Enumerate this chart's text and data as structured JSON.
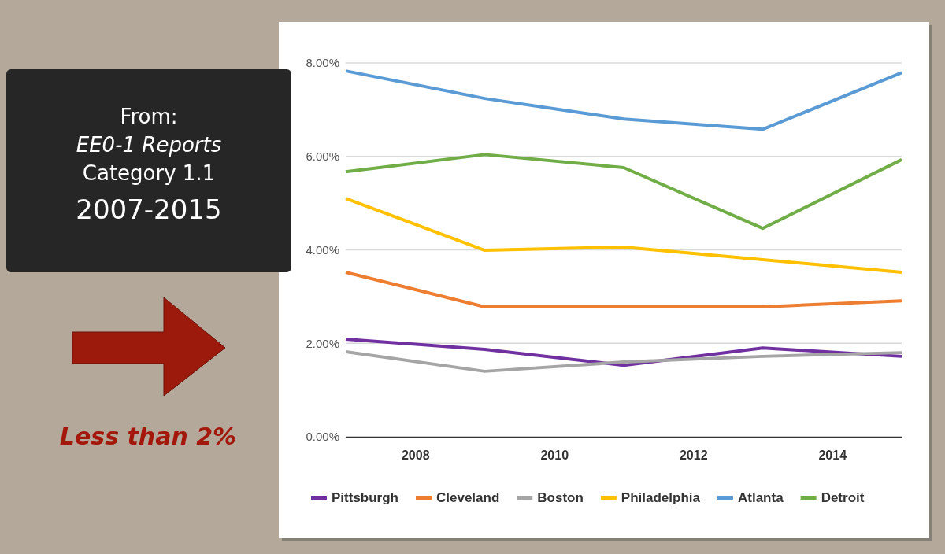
{
  "chart_data": {
    "type": "line",
    "x": [
      2007,
      2009,
      2011,
      2013,
      2015
    ],
    "xlim": [
      2007,
      2015
    ],
    "xticks": [
      2008,
      2010,
      2012,
      2014
    ],
    "ylim": [
      0,
      8
    ],
    "yticks": [
      {
        "value": 0,
        "label": "0.00%"
      },
      {
        "value": 2,
        "label": "2.00%"
      },
      {
        "value": 4,
        "label": "4.00%"
      },
      {
        "value": 6,
        "label": "6.00%"
      },
      {
        "value": 8,
        "label": "8.00%"
      }
    ],
    "grid": "y",
    "legend": "bottom",
    "marker": "none",
    "line_style": "solid",
    "annotations": [
      "From:",
      "EE0-1 Reports",
      "Category 1.1",
      "2007-2015",
      "Less than 2%"
    ],
    "series": [
      {
        "name": "Pittsburgh",
        "color": "#7030a0",
        "values": [
          2.09,
          1.87,
          1.53,
          1.9,
          1.72
        ]
      },
      {
        "name": "Cleveland",
        "color": "#ed7d31",
        "values": [
          3.52,
          2.78,
          2.78,
          2.78,
          2.91
        ]
      },
      {
        "name": "Boston",
        "color": "#a5a5a5",
        "values": [
          1.82,
          1.4,
          1.6,
          1.72,
          1.8
        ]
      },
      {
        "name": "Philadelphia",
        "color": "#ffc000",
        "values": [
          5.1,
          3.99,
          4.06,
          3.79,
          3.52
        ]
      },
      {
        "name": "Atlanta",
        "color": "#5b9bd5",
        "values": [
          7.83,
          7.24,
          6.8,
          6.58,
          7.79
        ]
      },
      {
        "name": "Detroit",
        "color": "#70ad47",
        "values": [
          5.67,
          6.04,
          5.76,
          4.46,
          5.93
        ]
      }
    ]
  }
}
